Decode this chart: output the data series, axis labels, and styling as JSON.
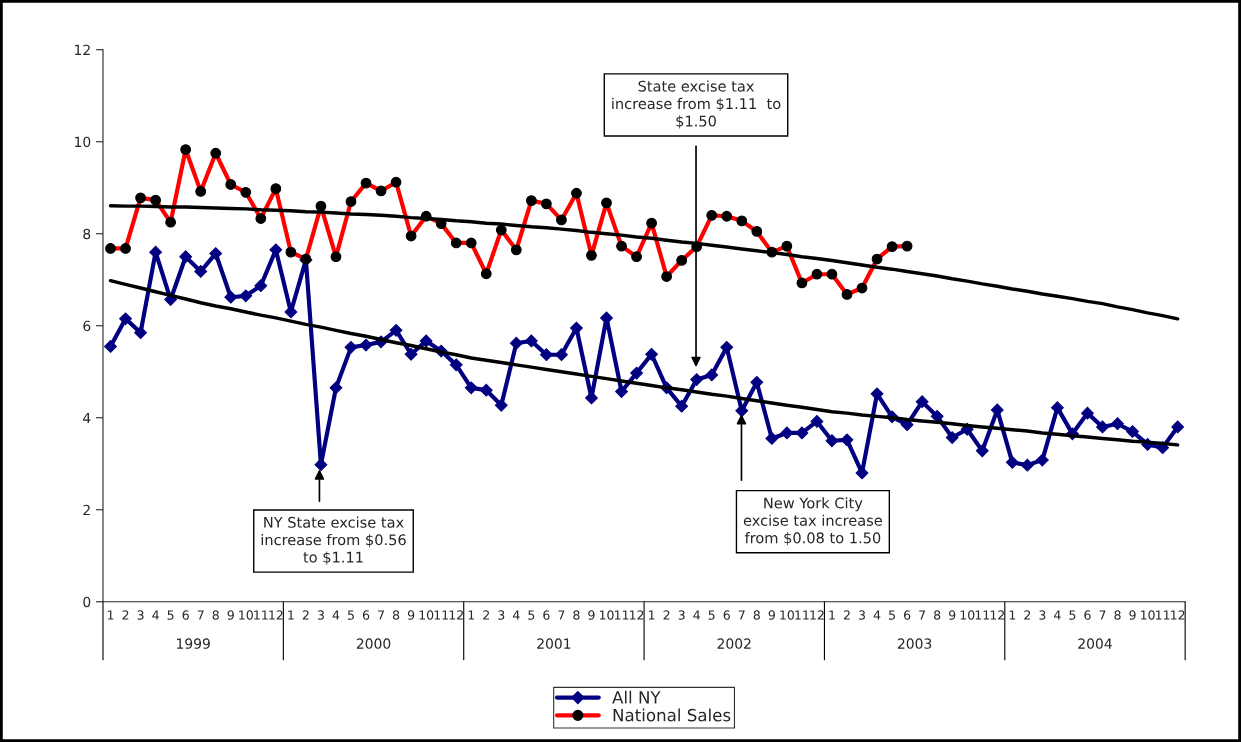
{
  "chart_data": {
    "type": "line",
    "categories": [
      "1",
      "2",
      "3",
      "4",
      "5",
      "6",
      "7",
      "8",
      "9",
      "10",
      "11",
      "12",
      "1",
      "2",
      "3",
      "4",
      "5",
      "6",
      "7",
      "8",
      "9",
      "10",
      "11",
      "12",
      "1",
      "2",
      "3",
      "4",
      "5",
      "6",
      "7",
      "8",
      "9",
      "10",
      "11",
      "12",
      "1",
      "2",
      "3",
      "4",
      "5",
      "6",
      "7",
      "8",
      "9",
      "10",
      "11",
      "12",
      "1",
      "2",
      "3",
      "4",
      "5",
      "6",
      "7",
      "8",
      "9",
      "10",
      "11",
      "12",
      "1",
      "2",
      "3",
      "4",
      "5",
      "6",
      "7",
      "8",
      "9",
      "10",
      "11",
      "12"
    ],
    "series": [
      {
        "name": "All NY",
        "color": "#000080",
        "marker": "diamond",
        "values": [
          5.55,
          6.15,
          5.85,
          7.6,
          6.57,
          7.5,
          7.18,
          7.57,
          6.62,
          6.65,
          6.87,
          7.65,
          6.3,
          7.43,
          2.98,
          4.65,
          5.53,
          5.58,
          5.65,
          5.9,
          5.38,
          5.67,
          5.45,
          5.15,
          4.65,
          4.6,
          4.27,
          5.62,
          5.67,
          5.37,
          5.37,
          5.95,
          4.43,
          6.17,
          4.57,
          4.97,
          5.38,
          4.65,
          4.25,
          4.83,
          4.93,
          5.53,
          4.15,
          4.77,
          3.55,
          3.67,
          3.67,
          3.92,
          3.5,
          3.52,
          2.8,
          4.52,
          4.02,
          3.85,
          4.35,
          4.03,
          3.57,
          3.75,
          3.28,
          4.17,
          3.03,
          2.97,
          3.08,
          4.22,
          3.65,
          4.1,
          3.8,
          3.87,
          3.7,
          3.42,
          3.35,
          3.8
        ]
      },
      {
        "name": "National Sales",
        "color": "#ff0000",
        "marker": "circle",
        "values": [
          7.68,
          7.68,
          8.78,
          8.73,
          8.25,
          9.83,
          8.92,
          9.75,
          9.07,
          8.9,
          8.33,
          8.98,
          7.6,
          7.45,
          8.6,
          7.5,
          8.7,
          9.1,
          8.93,
          9.12,
          7.95,
          8.38,
          8.22,
          7.8,
          7.8,
          7.13,
          8.08,
          7.65,
          8.72,
          8.65,
          8.3,
          8.88,
          7.53,
          8.67,
          7.73,
          7.5,
          8.23,
          7.07,
          7.42,
          7.72,
          8.4,
          8.38,
          8.28,
          8.05,
          7.6,
          7.73,
          6.93,
          7.12,
          7.12,
          6.68,
          6.82,
          7.45,
          7.72,
          7.73,
          null,
          null,
          null,
          null,
          null,
          null,
          null,
          null,
          null,
          null,
          null,
          null,
          null,
          null,
          null,
          null,
          null,
          null
        ]
      },
      {
        "color": "#000000",
        "marker": "none",
        "values": [
          8.61,
          8.6,
          8.6,
          8.59,
          8.58,
          8.58,
          8.57,
          8.56,
          8.55,
          8.54,
          8.52,
          8.51,
          8.5,
          8.48,
          8.47,
          8.45,
          8.43,
          8.42,
          8.4,
          8.38,
          8.35,
          8.33,
          8.31,
          8.28,
          8.26,
          8.23,
          8.21,
          8.18,
          8.15,
          8.13,
          8.1,
          8.07,
          8.03,
          8.0,
          7.97,
          7.93,
          7.9,
          7.86,
          7.82,
          7.79,
          7.75,
          7.71,
          7.67,
          7.63,
          7.59,
          7.55,
          7.5,
          7.46,
          7.42,
          7.37,
          7.32,
          7.27,
          7.23,
          7.18,
          7.13,
          7.08,
          7.02,
          6.97,
          6.91,
          6.86,
          6.8,
          6.75,
          6.69,
          6.64,
          6.59,
          6.53,
          6.48,
          6.41,
          6.35,
          6.28,
          6.22,
          6.15
        ]
      },
      {
        "color": "#000000",
        "marker": "none",
        "values": [
          6.98,
          6.9,
          6.82,
          6.74,
          6.66,
          6.58,
          6.5,
          6.43,
          6.37,
          6.3,
          6.23,
          6.17,
          6.1,
          6.03,
          5.97,
          5.9,
          5.83,
          5.77,
          5.7,
          5.63,
          5.57,
          5.5,
          5.43,
          5.37,
          5.3,
          5.25,
          5.2,
          5.15,
          5.1,
          5.05,
          5.0,
          4.95,
          4.9,
          4.85,
          4.8,
          4.75,
          4.7,
          4.65,
          4.61,
          4.56,
          4.51,
          4.47,
          4.42,
          4.37,
          4.32,
          4.27,
          4.23,
          4.18,
          4.13,
          4.1,
          4.06,
          4.03,
          4.0,
          3.96,
          3.93,
          3.9,
          3.87,
          3.83,
          3.8,
          3.77,
          3.74,
          3.71,
          3.67,
          3.64,
          3.61,
          3.58,
          3.55,
          3.52,
          3.49,
          3.47,
          3.44,
          3.41
        ]
      }
    ],
    "ylim": [
      0,
      12
    ],
    "yticks": [
      0,
      2,
      4,
      6,
      8,
      10,
      12
    ],
    "grid": false,
    "legend": "bottom",
    "annotations": [
      "NY State excise tax\nincrease from $0.56\nto $1.11",
      "State excise tax\nincrease from $1.11  to\n$1.50",
      "New York City\nexcise tax increase\nfrom $0.08 to 1.50",
      "1999",
      "2000",
      "2001",
      "2002",
      "2003",
      "2004"
    ]
  }
}
